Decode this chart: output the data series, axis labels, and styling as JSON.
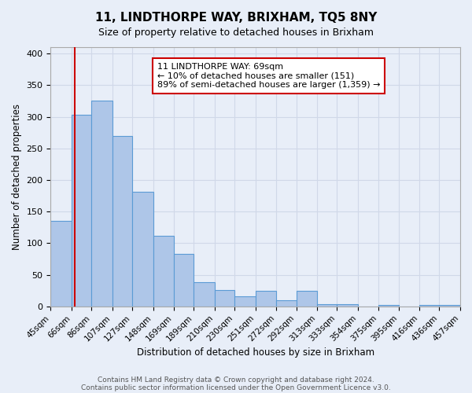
{
  "title": "11, LINDTHORPE WAY, BRIXHAM, TQ5 8NY",
  "subtitle": "Size of property relative to detached houses in Brixham",
  "xlabel": "Distribution of detached houses by size in Brixham",
  "ylabel": "Number of detached properties",
  "bin_edges": [
    45,
    66,
    86,
    107,
    127,
    148,
    169,
    189,
    210,
    230,
    251,
    272,
    292,
    313,
    333,
    354,
    375,
    395,
    416,
    436,
    457
  ],
  "bin_labels": [
    "45sqm",
    "66sqm",
    "86sqm",
    "107sqm",
    "127sqm",
    "148sqm",
    "169sqm",
    "189sqm",
    "210sqm",
    "230sqm",
    "251sqm",
    "272sqm",
    "292sqm",
    "313sqm",
    "333sqm",
    "354sqm",
    "375sqm",
    "395sqm",
    "416sqm",
    "436sqm",
    "457sqm"
  ],
  "counts": [
    135,
    303,
    325,
    270,
    181,
    112,
    83,
    38,
    26,
    16,
    25,
    10,
    25,
    4,
    4,
    0,
    2,
    0,
    2,
    2
  ],
  "bar_color": "#aec6e8",
  "bar_edge_color": "#5b9bd5",
  "vline_x": 69,
  "vline_color": "#cc0000",
  "annotation_text": "11 LINDTHORPE WAY: 69sqm\n← 10% of detached houses are smaller (151)\n89% of semi-detached houses are larger (1,359) →",
  "annotation_box_color": "#ffffff",
  "annotation_box_edge": "#cc0000",
  "ylim": [
    0,
    410
  ],
  "yticks": [
    0,
    50,
    100,
    150,
    200,
    250,
    300,
    350,
    400
  ],
  "grid_color": "#d0d8e8",
  "bg_color": "#e8eef8",
  "footer1": "Contains HM Land Registry data © Crown copyright and database right 2024.",
  "footer2": "Contains public sector information licensed under the Open Government Licence v3.0."
}
